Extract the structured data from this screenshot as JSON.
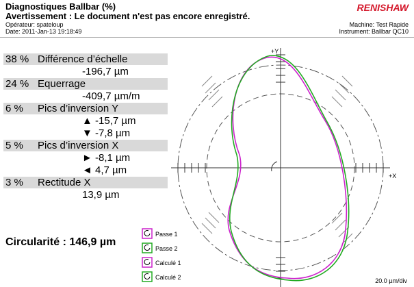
{
  "header": {
    "title": "Diagnostiques Ballbar (%)",
    "warning": "Avertissement : Le document n'est pas encore enregistré.",
    "operator": "Opérateur: spateloup",
    "date": "Date: 2011-Jan-13 19:18:49",
    "logo": "RENISHAW",
    "machine": "Machine: Test Rapide",
    "instrument": "Instrument: Ballbar QC10"
  },
  "items": [
    {
      "percent": "38 %",
      "name": "Différence d’échelle",
      "values": [
        "-196,7 µm"
      ]
    },
    {
      "percent": "24 %",
      "name": "Equerrage",
      "values": [
        "-409,7 µm/m"
      ]
    },
    {
      "percent": "6 %",
      "name": "Pics d’inversion Y",
      "values": [
        "▲ -15,7 µm",
        "▼ -7,8 µm"
      ]
    },
    {
      "percent": "5 %",
      "name": "Pics d’inversion X",
      "values": [
        "► -8,1 µm",
        "◄ 4,7 µm"
      ]
    },
    {
      "percent": "3 %",
      "name": "Rectitude X",
      "values": [
        "13,9 µm"
      ]
    }
  ],
  "circularity": "Circularité : 146,9 µm",
  "plot": {
    "y_label": "+Y",
    "x_label": "+X",
    "scale": "20.0 µm/div",
    "legend": [
      "Passe 1",
      "Passe 2",
      "Calculé 1",
      "Calculé 2"
    ]
  }
}
